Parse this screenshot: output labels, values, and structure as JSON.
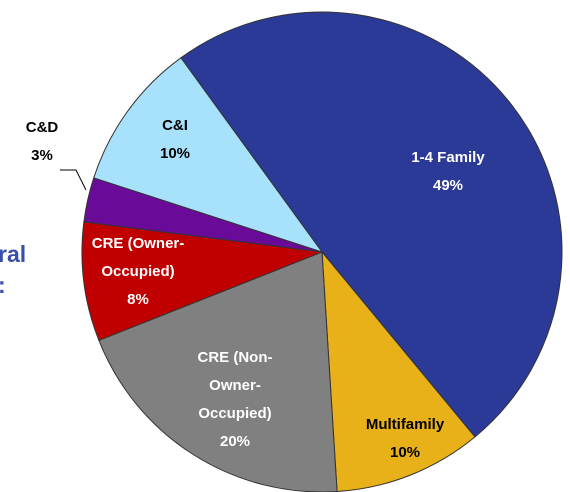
{
  "chart_data": {
    "type": "pie",
    "categories": [
      "1-4 Family",
      "Multifamily",
      "CRE (Non-Owner-Occupied)",
      "CRE (Owner-Occupied)",
      "C&D",
      "C&I"
    ],
    "values": [
      49,
      10,
      20,
      8,
      3,
      10
    ],
    "value_labels": [
      "49%",
      "10%",
      "20%",
      "8%",
      "3%",
      "10%"
    ],
    "colors": [
      "#2b3a97",
      "#e8b019",
      "#808080",
      "#c00000",
      "#6a0a99",
      "#a8e1fb"
    ],
    "label_colors": [
      "#ffffff",
      "#000000",
      "#ffffff",
      "#ffffff",
      "#000000",
      "#000000"
    ],
    "side_text": [
      "ral",
      ":"
    ]
  }
}
